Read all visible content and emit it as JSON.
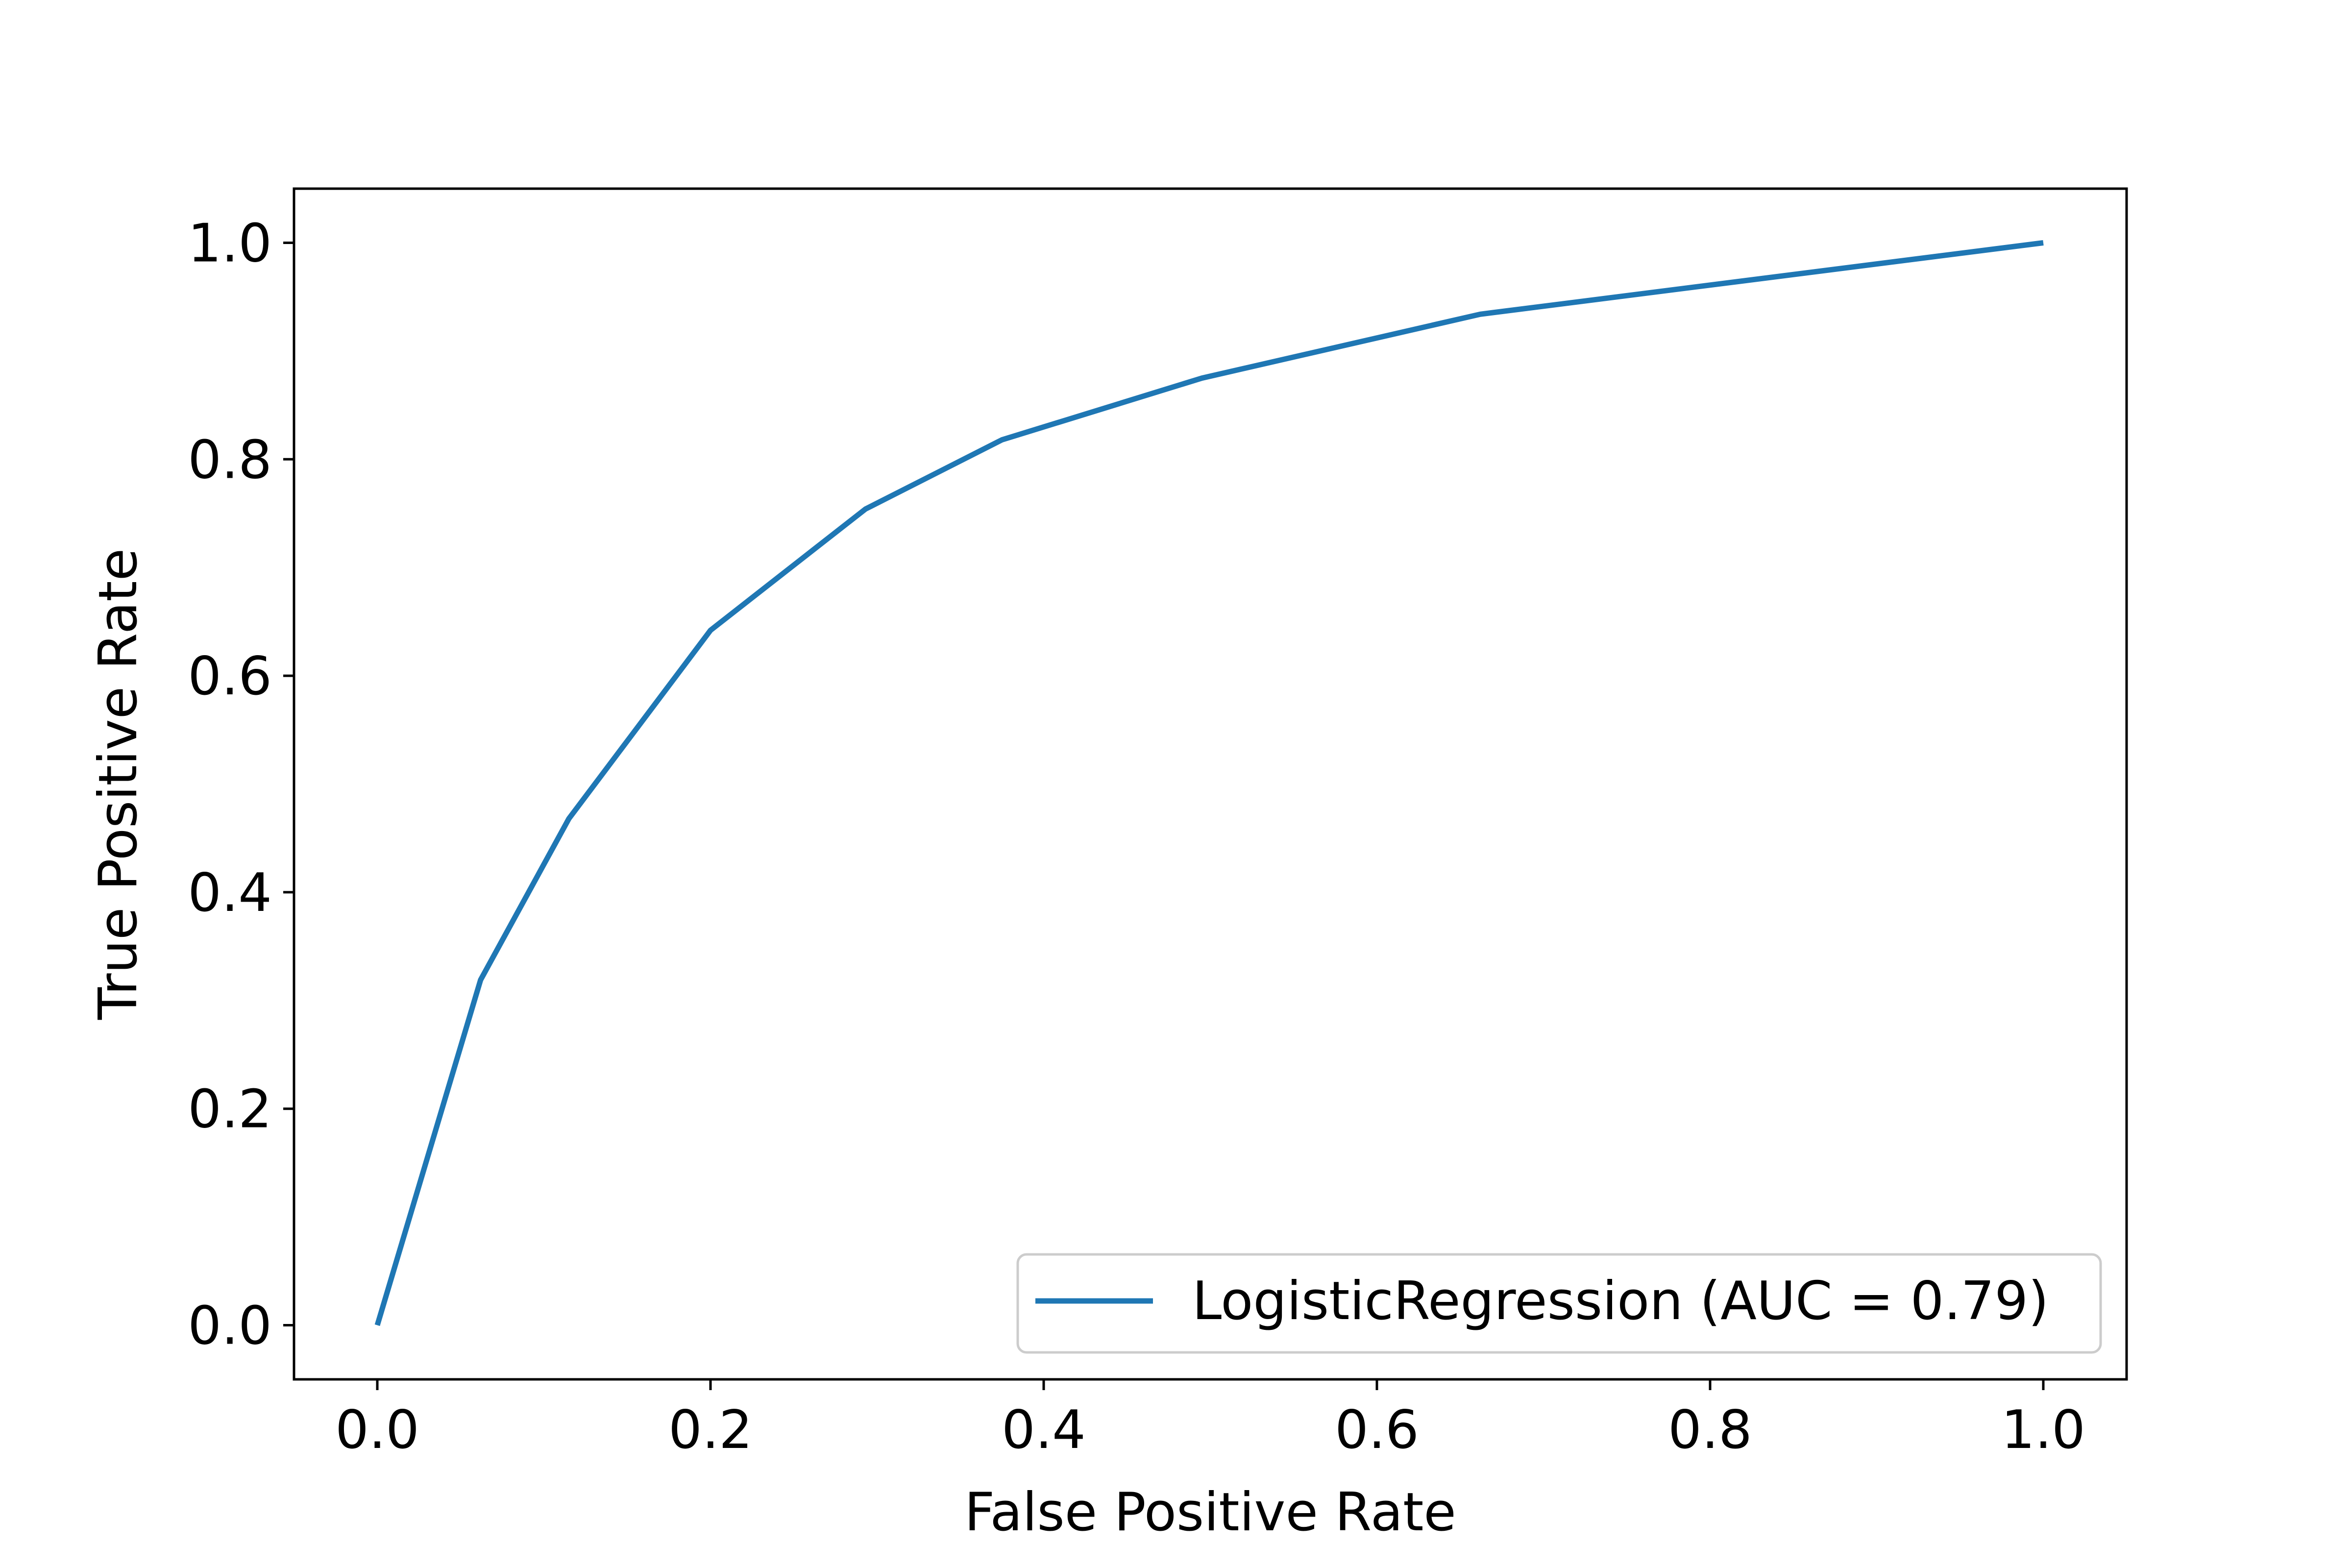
{
  "chart_data": {
    "type": "line",
    "xlabel": "False Positive Rate",
    "ylabel": "True Positive Rate",
    "xlim": [
      -0.05,
      1.05
    ],
    "ylim": [
      -0.05,
      1.05
    ],
    "xticks": [
      0.0,
      0.2,
      0.4,
      0.6,
      0.8,
      1.0
    ],
    "xtick_labels": [
      "0.0",
      "0.2",
      "0.4",
      "0.6",
      "0.8",
      "1.0"
    ],
    "yticks": [
      0.0,
      0.2,
      0.4,
      0.6,
      0.8,
      1.0
    ],
    "ytick_labels": [
      "0.0",
      "0.2",
      "0.4",
      "0.6",
      "0.8",
      "1.0"
    ],
    "grid": false,
    "legend_position": "lower-right",
    "series": [
      {
        "name": "LogisticRegression (AUC = 0.79)",
        "color": "#1f77b4",
        "x": [
          0.0,
          0.062,
          0.115,
          0.2,
          0.293,
          0.375,
          0.495,
          0.662,
          1.0
        ],
        "y": [
          0.0,
          0.319,
          0.468,
          0.642,
          0.754,
          0.818,
          0.875,
          0.934,
          1.0
        ]
      }
    ]
  }
}
